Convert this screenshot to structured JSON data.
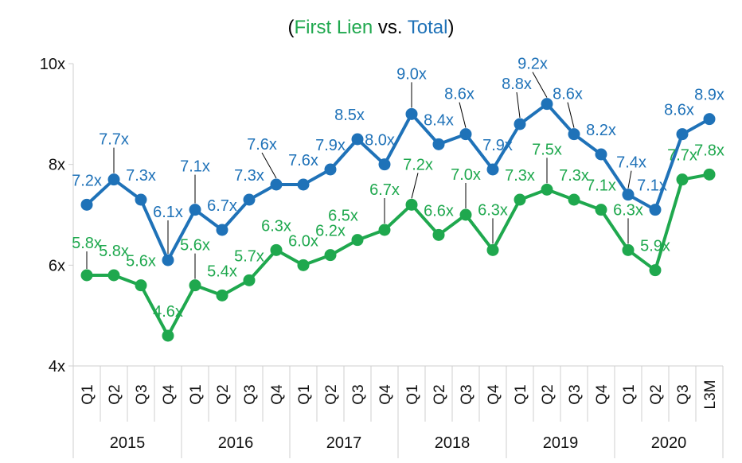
{
  "chart_data": {
    "type": "line",
    "title_parts": [
      {
        "text": "(",
        "color": "#000000"
      },
      {
        "text": "First Lien",
        "color": "#1fa84e"
      },
      {
        "text": " vs. ",
        "color": "#000000"
      },
      {
        "text": "Total",
        "color": "#1f72b8"
      },
      {
        "text": ")",
        "color": "#000000"
      }
    ],
    "categories": [
      "Q1",
      "Q2",
      "Q3",
      "Q4",
      "Q1",
      "Q2",
      "Q3",
      "Q4",
      "Q1",
      "Q2",
      "Q3",
      "Q4",
      "Q1",
      "Q2",
      "Q3",
      "Q4",
      "Q1",
      "Q2",
      "Q3",
      "Q4",
      "Q1",
      "Q2",
      "Q3",
      "L3M"
    ],
    "year_groups": [
      {
        "label": "2015",
        "count": 4
      },
      {
        "label": "2016",
        "count": 4
      },
      {
        "label": "2017",
        "count": 4
      },
      {
        "label": "2018",
        "count": 4
      },
      {
        "label": "2019",
        "count": 4
      },
      {
        "label": "2020",
        "count": 4
      }
    ],
    "y_ticks": [
      "4x",
      "6x",
      "8x",
      "10x"
    ],
    "ylim": [
      4,
      10
    ],
    "grid": false,
    "series": [
      {
        "key": "total",
        "color": "#1f72b8",
        "values": [
          7.2,
          7.7,
          7.3,
          6.1,
          7.1,
          6.7,
          7.3,
          7.6,
          7.6,
          7.9,
          8.5,
          8.0,
          9.0,
          8.4,
          8.6,
          7.9,
          8.8,
          9.2,
          8.6,
          8.2,
          7.4,
          7.1,
          8.6,
          8.9
        ],
        "labels": [
          "7.2x",
          "7.7x",
          "7.3x",
          "6.1x",
          "7.1x",
          "6.7x",
          "7.3x",
          "7.6x",
          "7.6x",
          "7.9x",
          "8.5x",
          "8.0x",
          "9.0x",
          "8.4x",
          "8.6x",
          "7.9x",
          "8.8x",
          "9.2x",
          "8.6x",
          "8.2x",
          "7.4x",
          "7.1x",
          "8.6x",
          "8.9x"
        ]
      },
      {
        "key": "first_lien",
        "color": "#1fa84e",
        "values": [
          5.8,
          5.8,
          5.6,
          4.6,
          5.6,
          5.4,
          5.7,
          6.3,
          6.0,
          6.2,
          6.5,
          6.7,
          7.2,
          6.6,
          7.0,
          6.3,
          7.3,
          7.5,
          7.3,
          7.1,
          6.3,
          5.9,
          7.7,
          7.8
        ],
        "labels": [
          "5.8x",
          "5.8x",
          "5.6x",
          "4.6x",
          "5.6x",
          "5.4x",
          "5.7x",
          "6.3x",
          "6.0x",
          "6.2x",
          "6.5x",
          "6.7x",
          "7.2x",
          "6.6x",
          "7.0x",
          "6.3x",
          "7.3x",
          "7.5x",
          "7.3x",
          "7.1x",
          "6.3x",
          "5.9x",
          "7.7x",
          "7.8x"
        ]
      }
    ]
  }
}
